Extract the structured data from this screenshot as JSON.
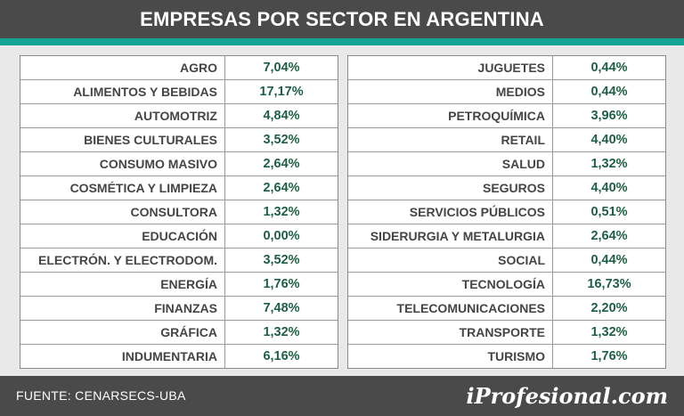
{
  "title": "EMPRESAS POR SECTOR EN ARGENTINA",
  "colors": {
    "header_bg": "#4a4a4a",
    "accent": "#16a394",
    "value_text": "#1f5f45",
    "name_text": "#454545"
  },
  "table": {
    "left": [
      {
        "sector": "AGRO",
        "value": "7,04%"
      },
      {
        "sector": "ALIMENTOS Y BEBIDAS",
        "value": "17,17%"
      },
      {
        "sector": "AUTOMOTRIZ",
        "value": "4,84%"
      },
      {
        "sector": "BIENES CULTURALES",
        "value": "3,52%"
      },
      {
        "sector": "CONSUMO MASIVO",
        "value": "2,64%"
      },
      {
        "sector": "COSMÉTICA Y LIMPIEZA",
        "value": "2,64%"
      },
      {
        "sector": "CONSULTORA",
        "value": "1,32%"
      },
      {
        "sector": "EDUCACIÓN",
        "value": "0,00%"
      },
      {
        "sector": "ELECTRÓN. Y ELECTRODOM.",
        "value": "3,52%"
      },
      {
        "sector": "ENERGÍA",
        "value": "1,76%"
      },
      {
        "sector": "FINANZAS",
        "value": "7,48%"
      },
      {
        "sector": "GRÁFICA",
        "value": "1,32%"
      },
      {
        "sector": "INDUMENTARIA",
        "value": "6,16%"
      }
    ],
    "right": [
      {
        "sector": "JUGUETES",
        "value": "0,44%"
      },
      {
        "sector": "MEDIOS",
        "value": "0,44%"
      },
      {
        "sector": "PETROQUÍMICA",
        "value": "3,96%"
      },
      {
        "sector": "RETAIL",
        "value": "4,40%"
      },
      {
        "sector": "SALUD",
        "value": "1,32%"
      },
      {
        "sector": "SEGUROS",
        "value": "4,40%"
      },
      {
        "sector": "SERVICIOS PÚBLICOS",
        "value": "0,51%"
      },
      {
        "sector": "SIDERURGIA Y METALURGIA",
        "value": "2,64%"
      },
      {
        "sector": "SOCIAL",
        "value": "0,44%"
      },
      {
        "sector": "TECNOLOGÍA",
        "value": "16,73%"
      },
      {
        "sector": "TELECOMUNICACIONES",
        "value": "2,20%"
      },
      {
        "sector": "TRANSPORTE",
        "value": "1,32%"
      },
      {
        "sector": "TURISMO",
        "value": "1,76%"
      }
    ]
  },
  "footer": {
    "source": "FUENTE:  CENARSECS-UBA",
    "brand": "iProfesional.com"
  }
}
